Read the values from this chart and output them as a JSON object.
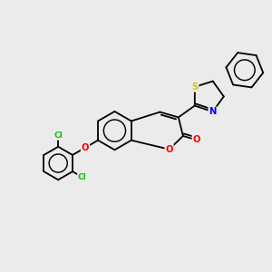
{
  "background_color": "#ebebeb",
  "bond_color": "#000000",
  "atom_colors": {
    "O": "#ff0000",
    "N": "#0000ff",
    "S": "#cccc00",
    "Cl": "#00cc00",
    "C": "#000000"
  },
  "figsize": [
    3.0,
    3.0
  ],
  "dpi": 100,
  "lw": 1.3,
  "fs": 7.2
}
